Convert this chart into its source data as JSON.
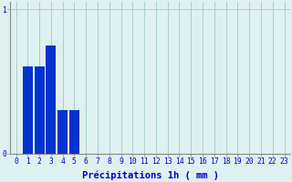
{
  "categories": [
    0,
    1,
    2,
    3,
    4,
    5,
    6,
    7,
    8,
    9,
    10,
    11,
    12,
    13,
    14,
    15,
    16,
    17,
    18,
    19,
    20,
    21,
    22,
    23
  ],
  "values": [
    0,
    0.6,
    0.6,
    0.75,
    0.3,
    0.3,
    0,
    0,
    0,
    0,
    0,
    0,
    0,
    0,
    0,
    0,
    0,
    0,
    0,
    0,
    0,
    0,
    0,
    0
  ],
  "bar_color": "#0033cc",
  "background_color": "#dff0f0",
  "plot_bg_color": "#dff0f0",
  "xlabel": "Précipitations 1h ( mm )",
  "xlabel_color": "#0000cc",
  "xlabel_fontsize": 7.5,
  "xlim": [
    -0.5,
    23.5
  ],
  "ylim": [
    0,
    1.05
  ],
  "yticks": [
    0,
    1
  ],
  "xtick_labels": [
    "0",
    "1",
    "2",
    "3",
    "4",
    "5",
    "6",
    "7",
    "8",
    "9",
    "10",
    "11",
    "12",
    "13",
    "14",
    "15",
    "16",
    "17",
    "18",
    "19",
    "20",
    "21",
    "22",
    "23"
  ],
  "tick_color": "#0000cc",
  "tick_fontsize": 5.8,
  "grid_color": "#aacece",
  "axis_color": "#888888",
  "bar_width": 0.85
}
